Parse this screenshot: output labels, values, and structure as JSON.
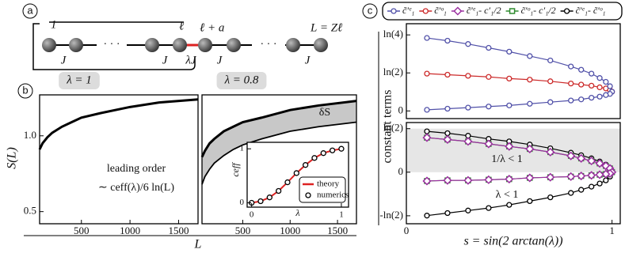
{
  "panel_labels": [
    "a",
    "b",
    "c"
  ],
  "diagram": {
    "start": "1",
    "cell_end": "ℓ",
    "next_site": "ℓ + a",
    "end": "L = Zℓ",
    "coupling": "J",
    "defect_coupling": "λJ",
    "ellipsis": "· · ·"
  },
  "chart_data": [
    {
      "type": "line",
      "title": "λ = 1",
      "ylabel": "S(L)",
      "xlabel": "L",
      "annotations": [
        "leading order",
        "∼ ceff(λ)/6 ln(L)"
      ],
      "xlim": [
        70,
        1700
      ],
      "ylim": [
        0.42,
        1.27
      ],
      "xticks": [
        500,
        1000,
        1500
      ],
      "yticks": [
        0.5,
        {
          "value": 1,
          "label": "1.0"
        }
      ],
      "x": [
        70,
        100,
        150,
        200,
        300,
        400,
        500,
        700,
        1000,
        1300,
        1700
      ],
      "series": [
        {
          "color": "#000000",
          "values": [
            0.91,
            0.95,
            0.99,
            1.02,
            1.06,
            1.09,
            1.12,
            1.15,
            1.19,
            1.22,
            1.24
          ]
        }
      ]
    },
    {
      "type": "line",
      "title": "λ = 0.8",
      "annotations": [
        "δS"
      ],
      "xlim": [
        70,
        1700
      ],
      "ylim": [
        0.42,
        1.27
      ],
      "xticks": [
        500,
        1000,
        1500
      ],
      "fill_between": "#c8c8c8",
      "x": [
        70,
        100,
        150,
        200,
        300,
        400,
        500,
        700,
        1000,
        1300,
        1700
      ],
      "series": [
        {
          "color": "#000000",
          "values": [
            0.86,
            0.9,
            0.95,
            0.98,
            1.03,
            1.06,
            1.09,
            1.12,
            1.17,
            1.2,
            1.23
          ]
        },
        {
          "color": "#000000",
          "values": [
            0.68,
            0.73,
            0.78,
            0.82,
            0.87,
            0.91,
            0.94,
            0.98,
            1.03,
            1.06,
            1.09
          ]
        }
      ]
    },
    {
      "type": "line",
      "ylabel": "ceff",
      "xlabel": "λ",
      "legend": "lower right",
      "xlim": [
        -0.05,
        1.08
      ],
      "ylim": [
        -0.08,
        1.12
      ],
      "xticks": [
        0,
        1
      ],
      "yticks": [
        0,
        1
      ],
      "x": [
        0,
        0.1,
        0.2,
        0.3,
        0.4,
        0.5,
        0.6,
        0.7,
        0.8,
        0.9,
        1.0
      ],
      "series": [
        {
          "name": "theory",
          "color": "#dd2222",
          "values": [
            0,
            0.03,
            0.1,
            0.22,
            0.38,
            0.55,
            0.7,
            0.83,
            0.92,
            0.97,
            1.0
          ]
        },
        {
          "name": "numerics",
          "color": "#000000",
          "marker": "o",
          "line": false,
          "values": [
            0,
            0.03,
            0.1,
            0.22,
            0.38,
            0.55,
            0.7,
            0.83,
            0.92,
            0.97,
            1.0
          ]
        }
      ]
    },
    {
      "type": "line",
      "ylabel": "constant terms",
      "legend": "top",
      "xlim": [
        0,
        1.04
      ],
      "ylim": [
        -0.14,
        1.59
      ],
      "yticks": [
        {
          "value": 1.386,
          "label": "ln(4)"
        },
        {
          "value": 0.693,
          "label": "ln(2)"
        },
        0
      ],
      "x": [
        0.1,
        0.2,
        0.3,
        0.4,
        0.5,
        0.6,
        0.7,
        0.8,
        0.85,
        0.9,
        0.94,
        0.97,
        0.99,
        1.0,
        0.99,
        0.97,
        0.94,
        0.9,
        0.85,
        0.8,
        0.7,
        0.6,
        0.5,
        0.4,
        0.3,
        0.2,
        0.1
      ],
      "series": [
        {
          "name": "c̃′ᵉ₁",
          "color": "#5050a8",
          "marker": "o",
          "values": [
            1.33,
            1.28,
            1.22,
            1.15,
            1.08,
            1.0,
            0.92,
            0.81,
            0.75,
            0.68,
            0.6,
            0.53,
            0.45,
            0.35,
            0.31,
            0.29,
            0.26,
            0.24,
            0.21,
            0.19,
            0.16,
            0.13,
            0.1,
            0.08,
            0.06,
            0.04,
            0.02
          ]
        },
        {
          "name": "c̃′ᵒ₁",
          "color": "#cc2a2a",
          "marker": "o",
          "x": [
            0.1,
            0.2,
            0.3,
            0.4,
            0.5,
            0.6,
            0.7,
            0.8,
            0.85,
            0.9,
            0.94,
            0.97,
            0.99,
            1.0
          ],
          "values": [
            0.68,
            0.66,
            0.64,
            0.62,
            0.59,
            0.57,
            0.54,
            0.5,
            0.48,
            0.46,
            0.43,
            0.41,
            0.38,
            0.35
          ]
        }
      ]
    },
    {
      "type": "line",
      "xlabel": "s = sin(2 arctan(λ))",
      "legend": "top",
      "annotations": [
        "1/λ < 1",
        "λ < 1"
      ],
      "shade": [
        0,
        0.693
      ],
      "shade_color": "#e6e6e6",
      "xlim": [
        0,
        1.04
      ],
      "ylim": [
        -0.82,
        0.79
      ],
      "xticks": [
        0,
        1
      ],
      "yticks": [
        {
          "value": 0.693,
          "label": "ln(2)"
        },
        0,
        {
          "value": -0.693,
          "label": "-ln(2)"
        }
      ],
      "x": [
        0.1,
        0.2,
        0.3,
        0.4,
        0.5,
        0.6,
        0.7,
        0.8,
        0.85,
        0.9,
        0.94,
        0.97,
        0.99,
        1.0,
        0.99,
        0.97,
        0.94,
        0.9,
        0.85,
        0.8,
        0.7,
        0.6,
        0.5,
        0.4,
        0.3,
        0.2,
        0.1
      ],
      "series": [
        {
          "name": "c̃′ᵉ₁- c′₁/2",
          "color": "#9b30a0",
          "marker": "D",
          "values": [
            0.55,
            0.52,
            0.49,
            0.45,
            0.41,
            0.37,
            0.32,
            0.26,
            0.22,
            0.18,
            0.14,
            0.1,
            0.06,
            0,
            -0.02,
            -0.03,
            -0.04,
            -0.05,
            -0.06,
            -0.07,
            -0.08,
            -0.09,
            -0.11,
            -0.12,
            -0.13,
            -0.13,
            -0.14
          ]
        },
        {
          "name": "c̃′ᵒ₁- c′₁/2",
          "color": "#2e8b2e",
          "marker": "s",
          "values": [
            0.55,
            0.52,
            0.49,
            0.45,
            0.41,
            0.37,
            0.32,
            0.26,
            0.22,
            0.18,
            0.14,
            0.1,
            0.06,
            0,
            -0.02,
            -0.03,
            -0.04,
            -0.05,
            -0.06,
            -0.07,
            -0.08,
            -0.09,
            -0.11,
            -0.12,
            -0.13,
            -0.13,
            -0.14
          ]
        },
        {
          "name": "c̃′ᵉ₁- c̃′ᵒ₁",
          "color": "#000000",
          "marker": "o",
          "values": [
            0.65,
            0.62,
            0.58,
            0.53,
            0.49,
            0.44,
            0.38,
            0.31,
            0.27,
            0.22,
            0.17,
            0.12,
            0.07,
            0,
            -0.07,
            -0.13,
            -0.18,
            -0.23,
            -0.28,
            -0.33,
            -0.4,
            -0.46,
            -0.52,
            -0.57,
            -0.61,
            -0.65,
            -0.69
          ]
        }
      ]
    }
  ]
}
